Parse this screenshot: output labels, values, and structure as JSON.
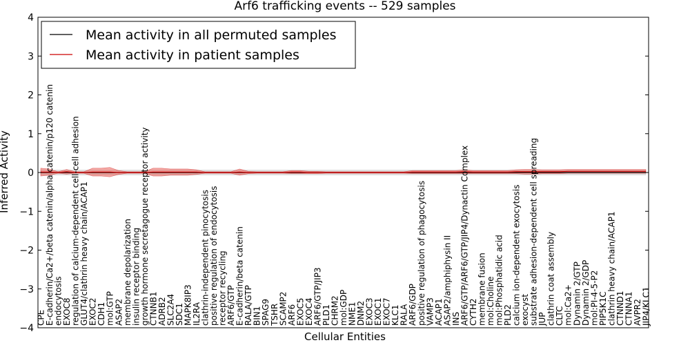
{
  "chart_data": {
    "type": "line",
    "title": "Arf6 trafficking events -- 529 samples",
    "xlabel": "Cellular Entities",
    "ylabel": "Inferred Activity",
    "ylim": [
      -4,
      4
    ],
    "yticks": [
      -4,
      -3,
      -2,
      -1,
      0,
      1,
      2,
      3,
      4
    ],
    "grid": false,
    "legend_position": "top-left",
    "categories": [
      "CPE",
      "E-cadherin/Ca2+/beta catenin/alpha catenin/p120 catenin",
      "endocytosis",
      "EXOC8",
      "regulation of calcium-dependent cell-cell adhesion",
      "GLUT4/clathrin heavy chain/ACAP1",
      "EXOC2",
      "CDH1",
      "mol:GTP",
      "ASAP2",
      "membrane depolarization",
      "insulin receptor binding",
      "growth hormone secretagogue receptor activity",
      "CTNNB1",
      "ADRB2",
      "SLC2A4",
      "SDC1",
      "MAPK8IP3",
      "IL2RA",
      "clathrin-independent pinocytosis",
      "positive regulation of endocytosis",
      "receptor recycling",
      "ARF6/GTP",
      "E-cadherin/beta catenin",
      "RALA/GTP",
      "BIN1",
      "SPAG9",
      "TSHR",
      "SCAMP2",
      "ARF6",
      "EXOC5",
      "EXOC4",
      "ARF6/GTP/JIP3",
      "PLD1",
      "CHRM2",
      "mol:GDP",
      "NME1",
      "DNM2",
      "EXOC3",
      "EXOC1",
      "EXOC7",
      "KLC1",
      "RALA",
      "ARF6/GDP",
      "positive regulation of phagocytosis",
      "VAMP3",
      "ACAP1",
      "ASAP2/amphiphysin II",
      "INS",
      "ARF6/GTP/ARF6/GTP/JIP4/Dynactin Complex",
      "CYTH2",
      "membrane fusion",
      "mol:Choline",
      "mol:Phosphatidic acid",
      "PLD2",
      "calcium ion-dependent exocytosis",
      "exocyst",
      "substrate adhesion-dependent cell spreading",
      "JUP",
      "clathrin coat assembly",
      "CLTC",
      "mol:Ca2+",
      "Dynamin 2/GTP",
      "Dynamin 2/GDP",
      "mol:PI-4-5-P2",
      "PIP5K1C",
      "clathrin heavy chain/ACAP1",
      "CTNND1",
      "CTNNA1",
      "AVPR2",
      "JIP4/KLC1"
    ],
    "series": [
      {
        "name": "Mean activity in all permuted samples",
        "color": "#000000",
        "values": [
          0,
          0,
          0,
          0,
          0,
          0,
          0,
          0,
          0,
          0,
          0,
          0,
          0,
          0,
          0,
          0,
          0,
          0,
          0,
          0,
          0,
          0,
          0,
          0,
          0,
          0,
          0,
          0,
          0,
          0,
          0,
          0,
          0,
          0,
          0,
          0,
          0,
          0,
          0,
          0,
          0,
          0,
          0,
          0,
          0,
          0,
          0,
          0,
          0,
          0,
          0,
          0,
          0,
          0,
          0,
          0,
          0,
          0,
          0,
          0,
          0,
          0,
          0,
          0,
          0,
          0,
          0,
          0,
          0,
          0,
          0
        ],
        "band_halfwidth": 0.06
      },
      {
        "name": "Mean activity in patient samples",
        "color": "#cc0000",
        "values": [
          0.01,
          0.01,
          0.0,
          0.02,
          0.0,
          0.0,
          0.01,
          0.01,
          0.01,
          0.0,
          0.0,
          0.0,
          0.0,
          0.01,
          0.01,
          0.01,
          0.01,
          0.01,
          0.01,
          0.0,
          0.0,
          0.0,
          0.0,
          0.01,
          0.0,
          0.0,
          0.0,
          0.0,
          0.0,
          0.01,
          0.01,
          0.0,
          0.0,
          0.0,
          0.0,
          0.0,
          0.0,
          0.0,
          0.0,
          0.0,
          0.0,
          0.0,
          0.0,
          0.01,
          0.01,
          0.01,
          0.01,
          0.01,
          0.01,
          0.02,
          0.01,
          0.01,
          0.01,
          0.01,
          0.01,
          0.02,
          0.02,
          0.02,
          0.02,
          0.02,
          0.02,
          0.03,
          0.03,
          0.03,
          0.03,
          0.03,
          0.03,
          0.03,
          0.03,
          0.03,
          0.03
        ],
        "band_halfwidth": [
          0.1,
          0.08,
          0.02,
          0.06,
          0.02,
          0.02,
          0.1,
          0.1,
          0.12,
          0.05,
          0.02,
          0.02,
          0.02,
          0.1,
          0.1,
          0.08,
          0.08,
          0.08,
          0.06,
          0.02,
          0.02,
          0.02,
          0.02,
          0.08,
          0.03,
          0.02,
          0.02,
          0.02,
          0.02,
          0.04,
          0.04,
          0.03,
          0.03,
          0.02,
          0.02,
          0.02,
          0.02,
          0.02,
          0.02,
          0.02,
          0.02,
          0.02,
          0.02,
          0.04,
          0.04,
          0.04,
          0.04,
          0.04,
          0.04,
          0.05,
          0.04,
          0.04,
          0.04,
          0.04,
          0.04,
          0.05,
          0.06,
          0.06,
          0.05,
          0.05,
          0.05,
          0.05,
          0.05,
          0.05,
          0.05,
          0.05,
          0.05,
          0.05,
          0.05,
          0.05,
          0.05
        ]
      }
    ]
  }
}
